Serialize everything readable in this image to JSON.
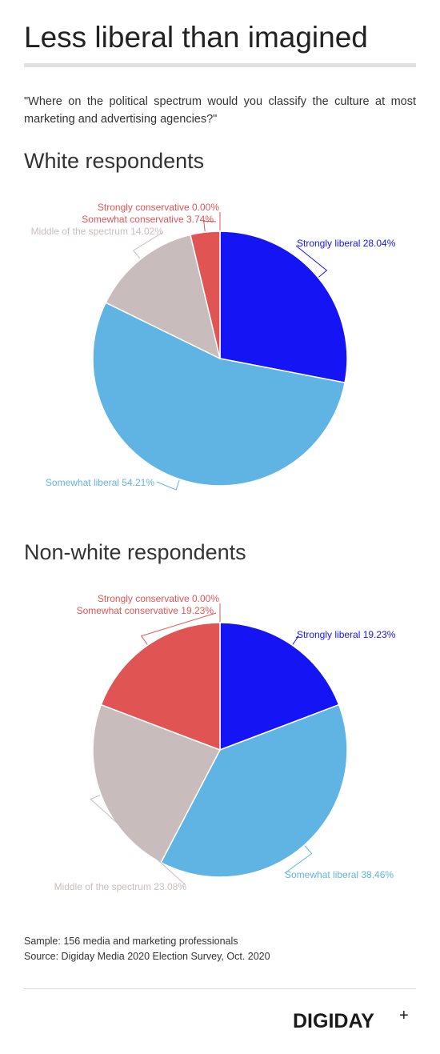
{
  "header": {
    "title": "Less liberal than imagined",
    "question": "\"Where on the political spectrum would you classify the culture at most marketing and advertising agencies?\""
  },
  "colors": {
    "strongly_liberal": "#1414f5",
    "somewhat_liberal": "#60b4e4",
    "middle": "#c9bcbc",
    "somewhat_conservative": "#e05454",
    "strongly_conservative": "#e05454"
  },
  "chart_data": [
    {
      "type": "pie",
      "title": "White respondents",
      "labels": [
        "Strongly liberal",
        "Somewhat liberal",
        "Middle of the spectrum",
        "Somewhat conservative",
        "Strongly conservative"
      ],
      "values": [
        28.04,
        54.21,
        14.02,
        3.74,
        0.0
      ],
      "display_labels": [
        "Strongly liberal 28.04%",
        "Somewhat liberal 54.21%",
        "Middle of the spectrum 14.02%",
        "Somewhat conservative 3.74%",
        "Strongly conservative 0.00%"
      ]
    },
    {
      "type": "pie",
      "title": "Non-white respondents",
      "labels": [
        "Strongly liberal",
        "Somewhat liberal",
        "Middle of the spectrum",
        "Somewhat conservative",
        "Strongly conservative"
      ],
      "values": [
        19.23,
        38.46,
        23.08,
        19.23,
        0.0
      ],
      "display_labels": [
        "Strongly liberal 19.23%",
        "Somewhat liberal 38.46%",
        "Middle of the spectrum 23.08%",
        "Somewhat conservative 19.23%",
        "Strongly conservative 0.00%"
      ]
    }
  ],
  "footer": {
    "sample": "Sample: 156 media and marketing professionals",
    "source": "Source: Digiday Media 2020 Election Survey, Oct. 2020",
    "logo": "DIGIDAY",
    "logo_mark": "+"
  }
}
